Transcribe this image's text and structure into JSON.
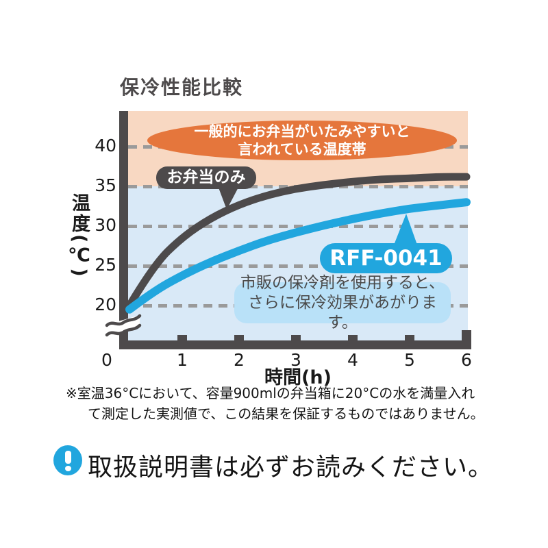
{
  "page": {
    "title": "保冷性能比較",
    "footnote": [
      "※室温36°Cにおいて、容量900mlの弁当箱に20°Cの水を満量入れ",
      "て測定した実測値で、この結果を保証するものではありません。"
    ],
    "notice": {
      "icon": "exclamation-circle-icon",
      "text": "取扱説明書は必ずお読みください。"
    }
  },
  "chart_data": {
    "type": "line",
    "title": "保冷性能比較",
    "xlabel": "時間(h)",
    "ylabel": "温度(℃)",
    "xlim": [
      0,
      6
    ],
    "ylim": [
      20,
      43
    ],
    "axis_break_below": 20,
    "grid": "horizontal-dashed",
    "xticks": [
      0,
      1,
      2,
      3,
      4,
      5,
      6
    ],
    "yticks": [
      20,
      25,
      30,
      35,
      40
    ],
    "x": [
      0,
      0.5,
      1,
      1.5,
      2,
      2.5,
      3,
      3.5,
      4,
      4.5,
      5,
      5.5,
      6
    ],
    "series": [
      {
        "name": "お弁当のみ",
        "color": "#4d4a4b",
        "values": [
          20.0,
          25.1,
          28.6,
          31.0,
          32.7,
          33.9,
          34.7,
          35.2,
          35.6,
          35.9,
          36.0,
          36.2,
          36.2
        ]
      },
      {
        "name": "RFF-0041",
        "color": "#21a6de",
        "values": [
          19.5,
          21.8,
          23.8,
          25.5,
          26.9,
          28.2,
          29.2,
          30.1,
          30.9,
          31.6,
          32.2,
          32.6,
          33.0
        ]
      }
    ],
    "annotations": {
      "danger_zone": {
        "line1": "一般的にお弁当がいたみやすいと",
        "line2": "言われている温度帯",
        "fill": "#e5763c"
      },
      "info_box": {
        "line1": "市販の保冷剤を使用すると、",
        "line2": "さらに保冷効果があがります。",
        "fill": "#b9e1f8"
      },
      "bg_upper_color": "#f8d8c2",
      "bg_lower_color": "#d9e9f7",
      "gridline_color": "#9a9a9a"
    }
  }
}
